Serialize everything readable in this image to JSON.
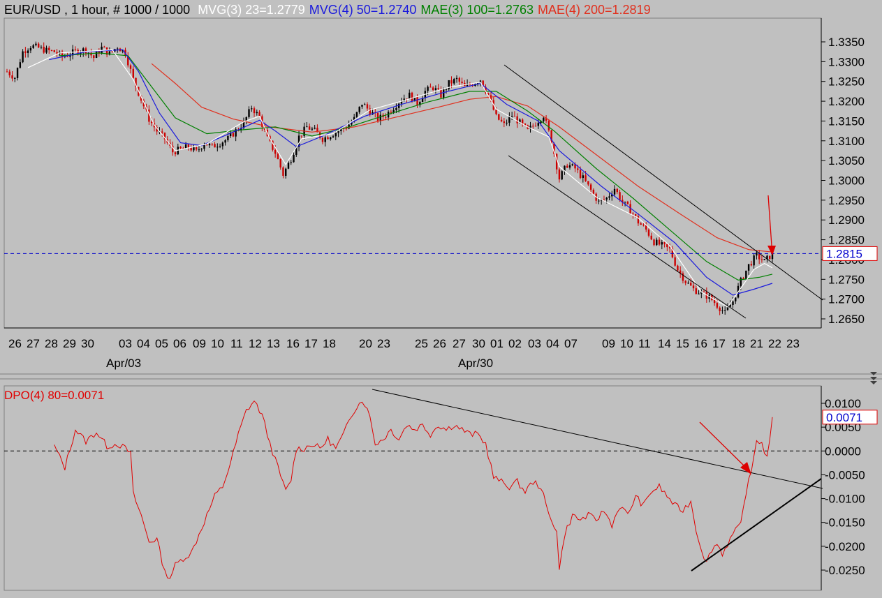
{
  "header": {
    "symbol": "EUR/USD",
    "rest": " , 1 hour, # 1000 / 1000",
    "mvg3": "MVG(3) 23=1.2779",
    "mvg4": "MVG(4) 50=1.2740",
    "mae3": "MAE(3) 100=1.2763",
    "mae4": "MAE(4) 200=1.2819"
  },
  "colors": {
    "background": "#c0c0c0",
    "up_bar": "#000000",
    "down_bar": "#cc0000",
    "mvg3": "#ffffff",
    "mvg4": "#1a1adc",
    "mae3": "#008000",
    "mae4": "#e0301e",
    "dpo": "#e00000",
    "trendline": "#000000",
    "price_marker": "#0000cc",
    "arrow": "#dd0000"
  },
  "chart_data": [
    {
      "type": "candlestick",
      "name": "EUR/USD 1 hour",
      "y_ticks": [
        "1.3350",
        "1.3300",
        "1.3250",
        "1.3200",
        "1.3150",
        "1.3100",
        "1.3050",
        "1.3000",
        "1.2950",
        "1.2900",
        "1.2850",
        "1.2800",
        "1.2750",
        "1.2700",
        "1.2650"
      ],
      "ylim": [
        1.262,
        1.339
      ],
      "current_price": "1.2815",
      "date_labels": [
        "26",
        "27",
        "28",
        "29",
        "30",
        "03",
        "04",
        "05",
        "06",
        "09",
        "10",
        "11",
        "12",
        "13",
        "16",
        "17",
        "18",
        "20",
        "23",
        "25",
        "26",
        "27",
        "30",
        "01",
        "02",
        "03",
        "04",
        "07",
        "09",
        "10",
        "11",
        "14",
        "15",
        "16",
        "17",
        "18",
        "21",
        "22",
        "23"
      ],
      "month_labels": [
        "Apr/03",
        "Apr/30"
      ],
      "grid": false,
      "price_path": [
        [
          0,
          1.3275
        ],
        [
          3,
          1.326
        ],
        [
          6,
          1.3325
        ],
        [
          9,
          1.334
        ],
        [
          12,
          1.3335
        ],
        [
          15,
          1.3328
        ],
        [
          18,
          1.3325
        ],
        [
          21,
          1.3312
        ],
        [
          24,
          1.332
        ],
        [
          27,
          1.3328
        ],
        [
          30,
          1.333
        ],
        [
          33,
          1.331
        ],
        [
          36,
          1.3335
        ],
        [
          39,
          1.332
        ],
        [
          42,
          1.3338
        ],
        [
          45,
          1.3322
        ],
        [
          48,
          1.3255
        ],
        [
          51,
          1.3205
        ],
        [
          54,
          1.3155
        ],
        [
          57,
          1.3125
        ],
        [
          60,
          1.3105
        ],
        [
          63,
          1.3072
        ],
        [
          66,
          1.3078
        ],
        [
          69,
          1.3085
        ],
        [
          72,
          1.3072
        ],
        [
          75,
          1.3095
        ],
        [
          78,
          1.3085
        ],
        [
          81,
          1.3095
        ],
        [
          84,
          1.3105
        ],
        [
          87,
          1.3125
        ],
        [
          90,
          1.3145
        ],
        [
          93,
          1.3185
        ],
        [
          96,
          1.316
        ],
        [
          99,
          1.3105
        ],
        [
          102,
          1.307
        ],
        [
          105,
          1.3015
        ],
        [
          108,
          1.3055
        ],
        [
          111,
          1.311
        ],
        [
          114,
          1.3135
        ],
        [
          117,
          1.3125
        ],
        [
          120,
          1.3105
        ],
        [
          123,
          1.3115
        ],
        [
          126,
          1.3125
        ],
        [
          129,
          1.3135
        ],
        [
          132,
          1.3155
        ],
        [
          135,
          1.3195
        ],
        [
          138,
          1.3175
        ],
        [
          141,
          1.3155
        ],
        [
          144,
          1.3165
        ],
        [
          147,
          1.3185
        ],
        [
          150,
          1.3205
        ],
        [
          153,
          1.3215
        ],
        [
          156,
          1.3195
        ],
        [
          159,
          1.3225
        ],
        [
          162,
          1.3235
        ],
        [
          165,
          1.3215
        ],
        [
          168,
          1.3245
        ],
        [
          171,
          1.3255
        ],
        [
          174,
          1.3235
        ],
        [
          177,
          1.3245
        ],
        [
          180,
          1.3255
        ],
        [
          183,
          1.3215
        ],
        [
          186,
          1.316
        ],
        [
          189,
          1.314
        ],
        [
          192,
          1.3165
        ],
        [
          195,
          1.3145
        ],
        [
          198,
          1.3125
        ],
        [
          201,
          1.3145
        ],
        [
          204,
          1.3165
        ],
        [
          207,
          1.31
        ],
        [
          210,
          1.3005
        ],
        [
          213,
          1.304
        ],
        [
          216,
          1.303
        ],
        [
          219,
          1.3005
        ],
        [
          222,
          1.2975
        ],
        [
          225,
          1.2945
        ],
        [
          228,
          1.2955
        ],
        [
          231,
          1.298
        ],
        [
          234,
          1.2945
        ],
        [
          237,
          1.2925
        ],
        [
          240,
          1.2895
        ],
        [
          243,
          1.2875
        ],
        [
          246,
          1.2845
        ],
        [
          249,
          1.2835
        ],
        [
          252,
          1.2825
        ],
        [
          255,
          1.2775
        ],
        [
          258,
          1.2745
        ],
        [
          261,
          1.2725
        ],
        [
          264,
          1.2715
        ],
        [
          267,
          1.2705
        ],
        [
          270,
          1.2685
        ],
        [
          273,
          1.2665
        ],
        [
          276,
          1.2695
        ],
        [
          279,
          1.2745
        ],
        [
          282,
          1.2785
        ],
        [
          285,
          1.281
        ],
        [
          288,
          1.2795
        ],
        [
          291,
          1.2815
        ]
      ],
      "mvg3_path": [
        [
          8,
          1.3285
        ],
        [
          20,
          1.3322
        ],
        [
          40,
          1.333
        ],
        [
          48,
          1.3255
        ],
        [
          56,
          1.314
        ],
        [
          64,
          1.3075
        ],
        [
          76,
          1.3092
        ],
        [
          90,
          1.3148
        ],
        [
          96,
          1.3162
        ],
        [
          100,
          1.3105
        ],
        [
          106,
          1.304
        ],
        [
          112,
          1.3105
        ],
        [
          124,
          1.3118
        ],
        [
          138,
          1.3178
        ],
        [
          150,
          1.32
        ],
        [
          168,
          1.3235
        ],
        [
          180,
          1.3248
        ],
        [
          186,
          1.318
        ],
        [
          198,
          1.3135
        ],
        [
          206,
          1.311
        ],
        [
          210,
          1.3035
        ],
        [
          224,
          1.2958
        ],
        [
          240,
          1.2905
        ],
        [
          252,
          1.2835
        ],
        [
          264,
          1.2718
        ],
        [
          274,
          1.268
        ],
        [
          284,
          1.2775
        ],
        [
          288,
          1.279
        ],
        [
          291,
          1.2779
        ]
      ],
      "mvg4_path": [
        [
          16,
          1.3305
        ],
        [
          30,
          1.3325
        ],
        [
          44,
          1.333
        ],
        [
          50,
          1.3275
        ],
        [
          58,
          1.317
        ],
        [
          66,
          1.3095
        ],
        [
          74,
          1.3088
        ],
        [
          88,
          1.3128
        ],
        [
          96,
          1.3152
        ],
        [
          102,
          1.3125
        ],
        [
          110,
          1.3085
        ],
        [
          120,
          1.3112
        ],
        [
          136,
          1.3162
        ],
        [
          150,
          1.3192
        ],
        [
          166,
          1.3222
        ],
        [
          180,
          1.3245
        ],
        [
          190,
          1.3192
        ],
        [
          202,
          1.315
        ],
        [
          210,
          1.3075
        ],
        [
          226,
          1.2985
        ],
        [
          240,
          1.2915
        ],
        [
          254,
          1.2842
        ],
        [
          266,
          1.2755
        ],
        [
          276,
          1.271
        ],
        [
          284,
          1.2725
        ],
        [
          291,
          1.274
        ]
      ],
      "mae3_path": [
        [
          20,
          1.3315
        ],
        [
          35,
          1.3322
        ],
        [
          46,
          1.3315
        ],
        [
          54,
          1.3245
        ],
        [
          64,
          1.3158
        ],
        [
          76,
          1.3118
        ],
        [
          90,
          1.3128
        ],
        [
          102,
          1.3135
        ],
        [
          116,
          1.3112
        ],
        [
          130,
          1.3135
        ],
        [
          144,
          1.3165
        ],
        [
          160,
          1.3198
        ],
        [
          176,
          1.3225
        ],
        [
          186,
          1.3225
        ],
        [
          198,
          1.3175
        ],
        [
          208,
          1.3125
        ],
        [
          224,
          1.303
        ],
        [
          238,
          1.2955
        ],
        [
          252,
          1.2875
        ],
        [
          266,
          1.2795
        ],
        [
          278,
          1.2748
        ],
        [
          286,
          1.2755
        ],
        [
          291,
          1.2763
        ]
      ],
      "mae4_path": [
        [
          55,
          1.3295
        ],
        [
          64,
          1.3245
        ],
        [
          74,
          1.3185
        ],
        [
          86,
          1.3155
        ],
        [
          100,
          1.3135
        ],
        [
          116,
          1.3122
        ],
        [
          132,
          1.3135
        ],
        [
          148,
          1.316
        ],
        [
          164,
          1.3185
        ],
        [
          176,
          1.3205
        ],
        [
          186,
          1.3212
        ],
        [
          198,
          1.3188
        ],
        [
          210,
          1.3135
        ],
        [
          224,
          1.3065
        ],
        [
          240,
          1.2985
        ],
        [
          256,
          1.2915
        ],
        [
          270,
          1.2855
        ],
        [
          282,
          1.2825
        ],
        [
          291,
          1.2819
        ]
      ]
    },
    {
      "type": "line",
      "name": "DPO(4) 80",
      "label": "DPO(4) 80=0.0071",
      "y_ticks": [
        "0.0100",
        "0.0050",
        "0.0000",
        "-0.0050",
        "-0.0100",
        "-0.0150",
        "-0.0200",
        "-0.0250"
      ],
      "ylim": [
        -0.0275,
        0.0125
      ],
      "current_value": "0.0071",
      "grid": false,
      "path": [
        [
          18,
          0.001
        ],
        [
          22,
          -0.0035
        ],
        [
          26,
          0.0045
        ],
        [
          30,
          0.002
        ],
        [
          34,
          0.004
        ],
        [
          38,
          0.001
        ],
        [
          42,
          0.0015
        ],
        [
          45,
          0.0005
        ],
        [
          47,
          -0.0005
        ],
        [
          48,
          -0.009
        ],
        [
          51,
          -0.0135
        ],
        [
          54,
          -0.019
        ],
        [
          57,
          -0.0185
        ],
        [
          60,
          -0.0255
        ],
        [
          62,
          -0.0265
        ],
        [
          64,
          -0.024
        ],
        [
          67,
          -0.0225
        ],
        [
          70,
          -0.0215
        ],
        [
          73,
          -0.0175
        ],
        [
          76,
          -0.0135
        ],
        [
          79,
          -0.0095
        ],
        [
          82,
          -0.0075
        ],
        [
          85,
          -0.0025
        ],
        [
          88,
          0.0035
        ],
        [
          91,
          0.0085
        ],
        [
          94,
          0.0105
        ],
        [
          97,
          0.0075
        ],
        [
          100,
          0.0015
        ],
        [
          103,
          -0.0035
        ],
        [
          106,
          -0.0085
        ],
        [
          108,
          -0.006
        ],
        [
          110,
          0.0005
        ],
        [
          113,
          0.0005
        ],
        [
          116,
          0.0015
        ],
        [
          119,
          0.0005
        ],
        [
          122,
          0.0025
        ],
        [
          125,
          0.0005
        ],
        [
          128,
          0.0035
        ],
        [
          131,
          0.0075
        ],
        [
          134,
          0.0105
        ],
        [
          137,
          0.0095
        ],
        [
          140,
          0.0015
        ],
        [
          143,
          0.0025
        ],
        [
          146,
          0.0045
        ],
        [
          149,
          0.0025
        ],
        [
          152,
          0.0055
        ],
        [
          155,
          0.0045
        ],
        [
          158,
          0.0055
        ],
        [
          161,
          0.0035
        ],
        [
          164,
          0.0055
        ],
        [
          167,
          0.0045
        ],
        [
          170,
          0.0055
        ],
        [
          173,
          0.0045
        ],
        [
          176,
          0.0035
        ],
        [
          179,
          0.0035
        ],
        [
          182,
          0.0015
        ],
        [
          185,
          -0.0055
        ],
        [
          188,
          -0.0065
        ],
        [
          191,
          -0.0075
        ],
        [
          194,
          -0.0065
        ],
        [
          197,
          -0.0085
        ],
        [
          200,
          -0.0065
        ],
        [
          203,
          -0.0075
        ],
        [
          206,
          -0.0135
        ],
        [
          209,
          -0.0165
        ],
        [
          210,
          -0.025
        ],
        [
          212,
          -0.0175
        ],
        [
          215,
          -0.0135
        ],
        [
          218,
          -0.0145
        ],
        [
          221,
          -0.0135
        ],
        [
          224,
          -0.0145
        ],
        [
          227,
          -0.0125
        ],
        [
          230,
          -0.0155
        ],
        [
          233,
          -0.0115
        ],
        [
          236,
          -0.0135
        ],
        [
          239,
          -0.0095
        ],
        [
          242,
          -0.0115
        ],
        [
          245,
          -0.0085
        ],
        [
          248,
          -0.0075
        ],
        [
          251,
          -0.0095
        ],
        [
          254,
          -0.0115
        ],
        [
          257,
          -0.0125
        ],
        [
          260,
          -0.0105
        ],
        [
          262,
          -0.0165
        ],
        [
          264,
          -0.0205
        ],
        [
          266,
          -0.0235
        ],
        [
          268,
          -0.0205
        ],
        [
          270,
          -0.0195
        ],
        [
          272,
          -0.0215
        ],
        [
          274,
          -0.0195
        ],
        [
          276,
          -0.0175
        ],
        [
          279,
          -0.0155
        ],
        [
          281,
          -0.0085
        ],
        [
          283,
          -0.0045
        ],
        [
          285,
          0.0025
        ],
        [
          287,
          0.0015
        ],
        [
          289,
          -0.0015
        ],
        [
          291,
          0.0071
        ]
      ]
    }
  ]
}
